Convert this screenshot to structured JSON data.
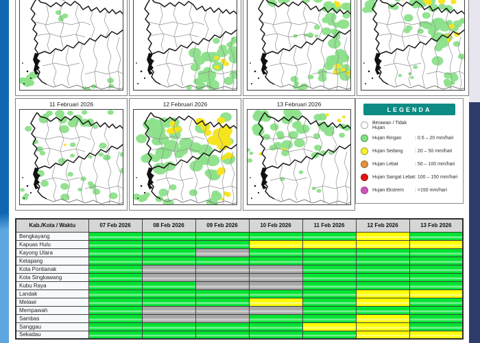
{
  "page": {
    "accent_colors": {
      "left_bar_top": "#0f67b2",
      "left_bar_bottom": "#5ea6e0",
      "right_bar": "#2d3c6b",
      "right_top_strip": "#e7e6f0"
    }
  },
  "maps": {
    "blob_colors": {
      "g": "#8ce08a",
      "y": "#f7e41c"
    },
    "row1_panels": [
      {
        "title": "",
        "clusters": [
          [
            62,
            32,
            9,
            8,
            4,
            2.5,
            4.5,
            "g"
          ],
          [
            70,
            4,
            8,
            3,
            2,
            2,
            3.5,
            "g"
          ],
          [
            12,
            124,
            9,
            9,
            6,
            3,
            6,
            "g"
          ],
          [
            100,
            134,
            12,
            5,
            3,
            2.5,
            4,
            "g"
          ],
          [
            140,
            129,
            8,
            5,
            2,
            2.5,
            4,
            "g"
          ]
        ]
      },
      {
        "title": "",
        "clusters": [
          [
            60,
            3,
            14,
            3,
            3,
            2,
            3,
            "g"
          ],
          [
            135,
            70,
            14,
            10,
            5,
            3,
            5,
            "g"
          ],
          [
            120,
            108,
            30,
            26,
            20,
            4,
            8,
            "g"
          ],
          [
            88,
            132,
            10,
            6,
            4,
            3,
            5,
            "g"
          ],
          [
            128,
            105,
            16,
            14,
            4,
            2.5,
            4,
            "y"
          ]
        ]
      },
      {
        "title": "",
        "clusters": [
          [
            76,
            7,
            70,
            7,
            14,
            3,
            6,
            "g"
          ],
          [
            125,
            30,
            25,
            17,
            11,
            4,
            7,
            "g"
          ],
          [
            85,
            58,
            18,
            12,
            5,
            2,
            4,
            "g"
          ],
          [
            128,
            90,
            23,
            38,
            20,
            4,
            8,
            "g"
          ],
          [
            80,
            128,
            18,
            9,
            6,
            3,
            5,
            "g"
          ],
          [
            138,
            12,
            11,
            7,
            3,
            2,
            3.5,
            "y"
          ],
          [
            139,
            100,
            9,
            17,
            4,
            2.5,
            4,
            "y"
          ]
        ]
      },
      {
        "title": "",
        "clusters": [
          [
            76,
            12,
            70,
            11,
            20,
            3.5,
            7,
            "g"
          ],
          [
            80,
            44,
            20,
            14,
            8,
            3,
            6,
            "g"
          ],
          [
            125,
            70,
            25,
            33,
            18,
            4,
            7.5,
            "g"
          ],
          [
            130,
            124,
            19,
            11,
            6,
            3,
            5,
            "g"
          ],
          [
            72,
            114,
            15,
            9,
            4,
            2,
            3.5,
            "g"
          ],
          [
            118,
            9,
            21,
            7,
            6,
            2.5,
            5,
            "y"
          ],
          [
            137,
            58,
            11,
            14,
            4,
            2.5,
            4,
            "y"
          ],
          [
            70,
            5,
            9,
            3,
            2,
            2,
            3,
            "y"
          ]
        ]
      }
    ],
    "row2_panels": [
      {
        "title": "11 Februari 2026",
        "clusters": [
          [
            74,
            16,
            64,
            14,
            16,
            3,
            6,
            "g"
          ],
          [
            74,
            66,
            58,
            24,
            11,
            2.5,
            5,
            "g"
          ],
          [
            84,
            112,
            54,
            20,
            11,
            2.5,
            5.5,
            "g"
          ],
          [
            10,
            124,
            8,
            9,
            3,
            2.5,
            4,
            "g"
          ],
          [
            148,
            80,
            5,
            20,
            3,
            2,
            4,
            "g"
          ],
          [
            66,
            50,
            2,
            2,
            1,
            1.6,
            2,
            "y"
          ]
        ]
      },
      {
        "title": "12 Februari 2026",
        "clusters": [
          [
            74,
            52,
            68,
            46,
            36,
            5,
            9,
            "g"
          ],
          [
            30,
            24,
            17,
            18,
            8,
            4,
            7,
            "g"
          ],
          [
            84,
            124,
            52,
            13,
            9,
            4,
            7,
            "g"
          ],
          [
            12,
            131,
            9,
            7,
            4,
            3,
            5,
            "g"
          ],
          [
            113,
            34,
            33,
            25,
            14,
            4.5,
            8,
            "y"
          ],
          [
            65,
            27,
            12,
            7,
            4,
            3,
            5,
            "y"
          ],
          [
            134,
            80,
            14,
            14,
            5,
            3,
            5,
            "y"
          ],
          [
            136,
            128,
            11,
            7,
            3,
            2,
            4,
            "y"
          ]
        ]
      },
      {
        "title": "13 Februari 2026",
        "clusters": [
          [
            68,
            30,
            62,
            26,
            26,
            4,
            7.5,
            "g"
          ],
          [
            128,
            24,
            20,
            16,
            8,
            3.5,
            6,
            "g"
          ],
          [
            84,
            60,
            48,
            9,
            7,
            3,
            5,
            "g"
          ],
          [
            4,
            70,
            4,
            11,
            3,
            2,
            3.5,
            "g"
          ],
          [
            92,
            110,
            44,
            18,
            4,
            1.8,
            3,
            "g"
          ],
          [
            58,
            60,
            4,
            3,
            1,
            2,
            3,
            "y"
          ],
          [
            22,
            63,
            3,
            3,
            1,
            1.8,
            2.6,
            "y"
          ],
          [
            140,
            13,
            6,
            4,
            2,
            1.8,
            3,
            "y"
          ],
          [
            116,
            8,
            4,
            3,
            1,
            1.8,
            2.6,
            "y"
          ]
        ]
      }
    ]
  },
  "legend": {
    "title": "LEGENDA",
    "items": [
      {
        "label": "Berawan / Tidak Hujan",
        "value": "",
        "color": "#ffffff"
      },
      {
        "label": "Hujan Ringan",
        "value": ": 0.5 – 20 mm/hari",
        "color": "#7ee27b"
      },
      {
        "label": "Hujan Sedang",
        "value": ": 20 – 50 mm/hari",
        "color": "#f6ef33"
      },
      {
        "label": "Hujan Lebat",
        "value": ": 50 – 100 mm/hari",
        "color": "#e2913d"
      },
      {
        "label": "Hujan Sangat Lebat",
        "value": ": 100 – 150 mm/hari",
        "color": "#e81010"
      },
      {
        "label": "Hujan Ekstrem",
        "value": ": >150 mm/hari",
        "color": "#cf53bf"
      }
    ]
  },
  "table": {
    "corner": "Kab./Kota / Waktu",
    "columns": [
      "07 Feb 2026",
      "08 Feb 2026",
      "09 Feb 2026",
      "10 Feb 2026",
      "11 Feb 2026",
      "12 Feb 2026",
      "13 Feb 2026"
    ],
    "colors": {
      "G": "#00e432",
      "Y": "#ffff00",
      "N": "#a8a8a8"
    },
    "color_meaning": {
      "G": "hujan-ringan",
      "Y": "hujan-sedang",
      "N": "berawan-tidak-hujan"
    },
    "rows": [
      {
        "name": "Bengkayang",
        "cells": [
          "G",
          "G",
          "G",
          "G",
          "G",
          "Y",
          "G"
        ]
      },
      {
        "name": "Kapuas Hulu",
        "cells": [
          "G",
          "G",
          "G",
          "Y",
          "Y",
          "Y",
          "Y"
        ]
      },
      {
        "name": "Kayong Utara",
        "cells": [
          "G",
          "G",
          "N",
          "G",
          "G",
          "G",
          "G"
        ]
      },
      {
        "name": "Ketapang",
        "cells": [
          "G",
          "G",
          "G",
          "G",
          "G",
          "G",
          "G"
        ]
      },
      {
        "name": "Kota Pontianak",
        "cells": [
          "G",
          "N",
          "N",
          "N",
          "G",
          "G",
          "G"
        ]
      },
      {
        "name": "Kota Singkawang",
        "cells": [
          "G",
          "N",
          "N",
          "N",
          "G",
          "G",
          "G"
        ]
      },
      {
        "name": "Kubu Raya",
        "cells": [
          "G",
          "G",
          "N",
          "N",
          "G",
          "G",
          "G"
        ]
      },
      {
        "name": "Landak",
        "cells": [
          "G",
          "G",
          "G",
          "G",
          "G",
          "Y",
          "Y"
        ]
      },
      {
        "name": "Melawi",
        "cells": [
          "G",
          "G",
          "G",
          "Y",
          "G",
          "Y",
          "G"
        ]
      },
      {
        "name": "Mempawah",
        "cells": [
          "G",
          "N",
          "N",
          "N",
          "G",
          "G",
          "G"
        ]
      },
      {
        "name": "Sambas",
        "cells": [
          "G",
          "N",
          "N",
          "G",
          "G",
          "Y",
          "G"
        ]
      },
      {
        "name": "Sanggau",
        "cells": [
          "G",
          "G",
          "G",
          "G",
          "Y",
          "Y",
          "G"
        ]
      },
      {
        "name": "Sekadau",
        "cells": [
          "G",
          "G",
          "G",
          "G",
          "G",
          "Y",
          "Y"
        ]
      }
    ]
  }
}
